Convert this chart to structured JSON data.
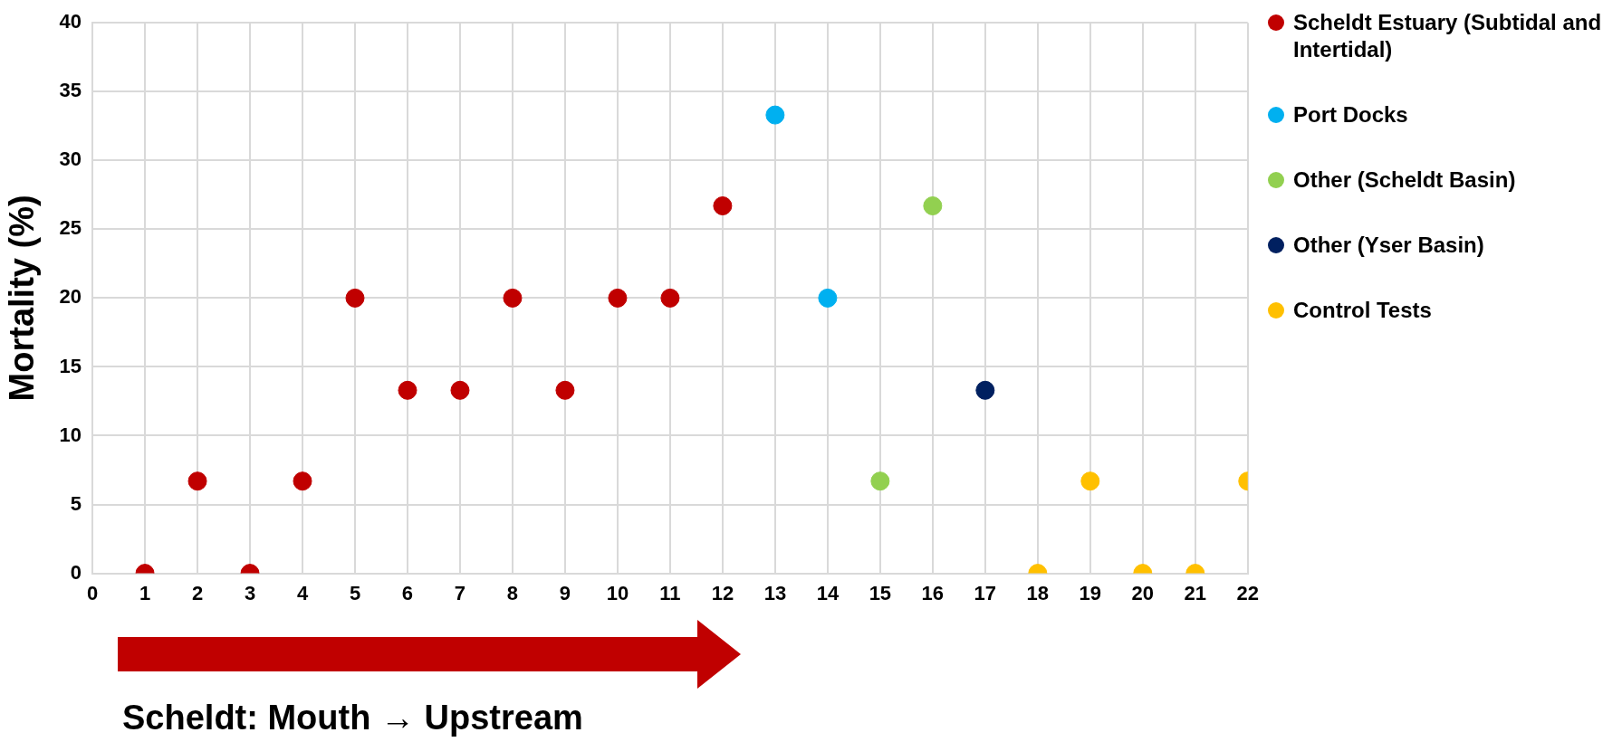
{
  "chart_data": {
    "type": "scatter",
    "ylabel": "Mortality (%)",
    "xlim": [
      0,
      22
    ],
    "xticks": [
      0,
      1,
      2,
      3,
      4,
      5,
      6,
      7,
      8,
      9,
      10,
      11,
      12,
      13,
      14,
      15,
      16,
      17,
      18,
      19,
      20,
      21,
      22
    ],
    "ylim": [
      0,
      40
    ],
    "yticks": [
      0,
      5,
      10,
      15,
      20,
      25,
      30,
      35,
      40
    ],
    "grid": true,
    "legend": "right",
    "marker": "circle",
    "series": [
      {
        "name": "Scheldt Estuary (Subtidal and Intertidal)",
        "color": "#c00000",
        "x": [
          1,
          2,
          3,
          4,
          5,
          6,
          7,
          8,
          9,
          10,
          11,
          12
        ],
        "values": [
          0,
          6.7,
          0,
          6.7,
          20,
          13.3,
          13.3,
          20,
          13.3,
          20,
          20,
          26.7
        ]
      },
      {
        "name": "Port Docks",
        "color": "#00b0f0",
        "x": [
          13,
          14
        ],
        "values": [
          33.3,
          20
        ]
      },
      {
        "name": "Other (Scheldt Basin)",
        "color": "#92d050",
        "x": [
          15,
          16
        ],
        "values": [
          6.7,
          26.7
        ]
      },
      {
        "name": "Other (Yser Basin)",
        "color": "#002060",
        "x": [
          17
        ],
        "values": [
          13.3
        ]
      },
      {
        "name": "Control Tests",
        "color": "#ffc000",
        "x": [
          18,
          19,
          20,
          21,
          22
        ],
        "values": [
          0,
          6.7,
          0,
          0,
          6.7
        ]
      }
    ],
    "annotations": [
      "Scheldt: Mouth → Upstream"
    ]
  }
}
